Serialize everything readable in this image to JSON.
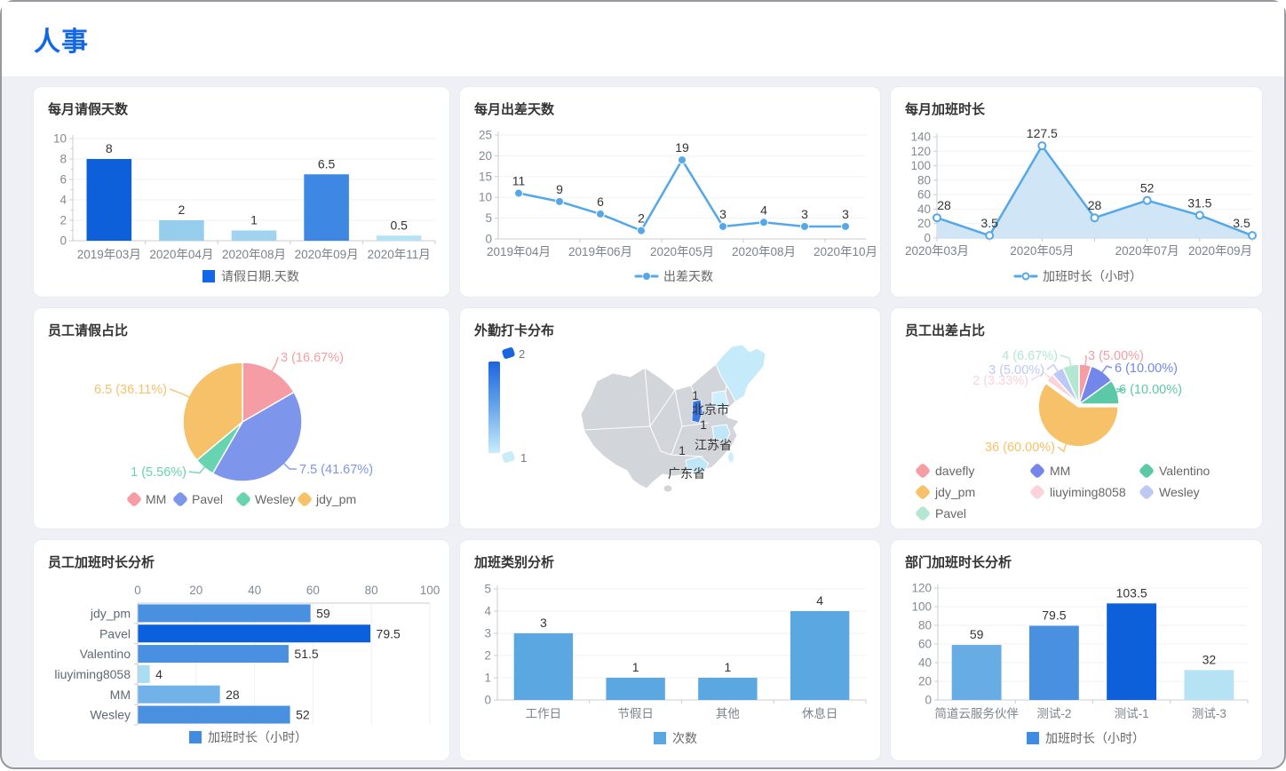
{
  "page": {
    "title": "人事"
  },
  "theme": {
    "accent": "#1266e8",
    "canvas_bg": "#eef0f5",
    "card_bg": "#ffffff",
    "axis_label_color": "#828a93",
    "category_label_color": "#7b838c",
    "value_label_color": "#333333",
    "legend_text_color": "#666666",
    "grid_line_color": "#f0f2f6",
    "axis_line_color": "#c9ccd1"
  },
  "chart_data": [
    {
      "id": "monthly-leave-days",
      "type": "bar",
      "title": "每月请假天数",
      "categories": [
        "2019年03月",
        "2020年04月",
        "2020年08月",
        "2020年09月",
        "2020年11月"
      ],
      "values": [
        8,
        2,
        1,
        6.5,
        0.5
      ],
      "bar_colors": [
        "#0d60da",
        "#97cdec",
        "#a0d3ef",
        "#3e87e2",
        "#b5e2f5"
      ],
      "yticks": [
        0,
        2,
        4,
        6,
        8,
        10
      ],
      "ylim": [
        0,
        10
      ],
      "yminor": true,
      "grid": true,
      "legend": "请假日期.天数",
      "legend_color": "#1266e8",
      "legend_position": "bottom"
    },
    {
      "id": "monthly-trip-days",
      "type": "line",
      "title": "每月出差天数",
      "categories": [
        "2019年04月",
        "",
        "2019年06月",
        "",
        "2020年05月",
        "",
        "2020年08月",
        "",
        "2020年10月"
      ],
      "values": [
        11,
        9,
        6,
        2,
        19,
        3,
        4,
        3,
        3
      ],
      "yticks": [
        0,
        5,
        10,
        15,
        20,
        25
      ],
      "ylim": [
        0,
        25
      ],
      "grid": true,
      "color": "#54a7e8",
      "legend": "出差天数",
      "legend_position": "bottom"
    },
    {
      "id": "monthly-overtime-hours",
      "type": "area",
      "title": "每月加班时长",
      "categories": [
        "2020年03月",
        "",
        "2020年05月",
        "",
        "2020年07月",
        "",
        "2020年09月"
      ],
      "values": [
        28,
        3.5,
        127.5,
        28,
        52,
        31.5,
        3.5
      ],
      "yticks": [
        0,
        20,
        40,
        60,
        80,
        100,
        120,
        140
      ],
      "ylim": [
        0,
        140
      ],
      "grid": true,
      "color": "#54a7e8",
      "fill": "#cde4f6",
      "legend": "加班时长（小时）",
      "legend_position": "bottom"
    },
    {
      "id": "leave-share-by-employee",
      "type": "pie",
      "title": "员工请假占比",
      "slices": [
        {
          "name": "MM",
          "value": 3,
          "pct": "16.67%",
          "color": "#f69ca4"
        },
        {
          "name": "Pavel",
          "value": 7.5,
          "pct": "41.67%",
          "color": "#7d95ea"
        },
        {
          "name": "Wesley",
          "value": 1,
          "pct": "5.56%",
          "color": "#67d3b0"
        },
        {
          "name": "jdy_pm",
          "value": 6.5,
          "pct": "36.11%",
          "color": "#f6c169"
        }
      ],
      "legend_position": "bottom"
    },
    {
      "id": "field-clockin-distribution",
      "type": "map",
      "title": "外勤打卡分布",
      "visual_max": 2,
      "visual_min": 1,
      "visual_colors": {
        "high": "#1b64df",
        "low": "#c8ecfa"
      },
      "regions": [
        {
          "name": "北京市",
          "value": 1
        },
        {
          "name": "江苏省",
          "value": 1
        },
        {
          "name": "广东省",
          "value": 1
        }
      ]
    },
    {
      "id": "trip-share-by-employee",
      "type": "pie",
      "title": "员工出差占比",
      "slices": [
        {
          "name": "davefly",
          "value": 3,
          "pct": "5.00%",
          "color": "#f69ca4"
        },
        {
          "name": "MM",
          "value": 6,
          "pct": "10.00%",
          "color": "#7287e9"
        },
        {
          "name": "Valentino",
          "value": 6,
          "pct": "10.00%",
          "color": "#5cc9a6"
        },
        {
          "name": "jdy_pm",
          "value": 36,
          "pct": "60.00%",
          "color": "#f6c169"
        },
        {
          "name": "liuyiming8058",
          "value": 2,
          "pct": "3.33%",
          "color": "#fbd3da"
        },
        {
          "name": "Wesley",
          "value": 3,
          "pct": "5.00%",
          "color": "#bcc9f5"
        },
        {
          "name": "Pavel",
          "value": 4,
          "pct": "6.67%",
          "color": "#b3e7d2"
        }
      ],
      "legend_position": "bottom-grid"
    },
    {
      "id": "overtime-by-employee",
      "type": "hbar",
      "title": "员工加班时长分析",
      "categories": [
        "jdy_pm",
        "Pavel",
        "Valentino",
        "liuyiming8058",
        "MM",
        "Wesley"
      ],
      "values": [
        59,
        79.5,
        51.5,
        4,
        28,
        52
      ],
      "bar_colors": [
        "#4a90e0",
        "#0b61dd",
        "#4a90e0",
        "#aadcf2",
        "#71b3e8",
        "#4a90e0"
      ],
      "xticks": [
        0,
        20,
        40,
        60,
        80,
        100
      ],
      "xlim": [
        0,
        100
      ],
      "grid": true,
      "legend": "加班时长（小时）",
      "legend_color": "#3f8ce2",
      "legend_position": "bottom"
    },
    {
      "id": "overtime-by-category",
      "type": "bar",
      "title": "加班类别分析",
      "categories": [
        "工作日",
        "节假日",
        "其他",
        "休息日"
      ],
      "values": [
        3,
        1,
        1,
        4
      ],
      "bar_colors": [
        "#5aa7e2",
        "#5aa7e2",
        "#5aa7e2",
        "#5aa7e2"
      ],
      "yticks": [
        0,
        1,
        2,
        3,
        4,
        5
      ],
      "ylim": [
        0,
        5
      ],
      "grid": true,
      "legend": "次数",
      "legend_color": "#5aa7e2",
      "legend_position": "bottom"
    },
    {
      "id": "overtime-by-department",
      "type": "bar",
      "title": "部门加班时长分析",
      "categories": [
        "简道云服务伙伴",
        "测试-2",
        "测试-1",
        "测试-3"
      ],
      "values": [
        59,
        79.5,
        103.5,
        32
      ],
      "bar_colors": [
        "#68ace5",
        "#4a90e0",
        "#0d60da",
        "#b5e3f4"
      ],
      "yticks": [
        0,
        20,
        40,
        60,
        80,
        100,
        120
      ],
      "ylim": [
        0,
        120
      ],
      "grid": true,
      "legend": "加班时长（小时）",
      "legend_color": "#3f8ce2",
      "legend_position": "bottom"
    }
  ]
}
